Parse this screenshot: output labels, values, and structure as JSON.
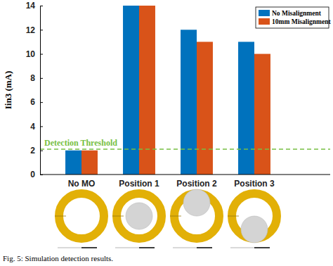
{
  "chart_data": {
    "type": "bar",
    "y_label": "Iin3 (mA)",
    "caption": "Fig. 5: Simulation detection results.",
    "categories": [
      "No MO",
      "Position 1",
      "Position 2",
      "Position 3"
    ],
    "series": [
      {
        "name": "No Misalignment",
        "color": "#0072bd",
        "values": [
          2,
          14,
          12,
          11
        ]
      },
      {
        "name": "10mm Misalignment",
        "color": "#d95319",
        "values": [
          2,
          14,
          11,
          10
        ]
      }
    ],
    "threshold": {
      "text": "Detection Threshold",
      "value": 2.1
    },
    "ylim": [
      0,
      14
    ],
    "yticks": [
      0,
      2,
      4,
      6,
      8,
      10,
      12,
      14
    ],
    "grid": false,
    "legend": "upper right"
  }
}
